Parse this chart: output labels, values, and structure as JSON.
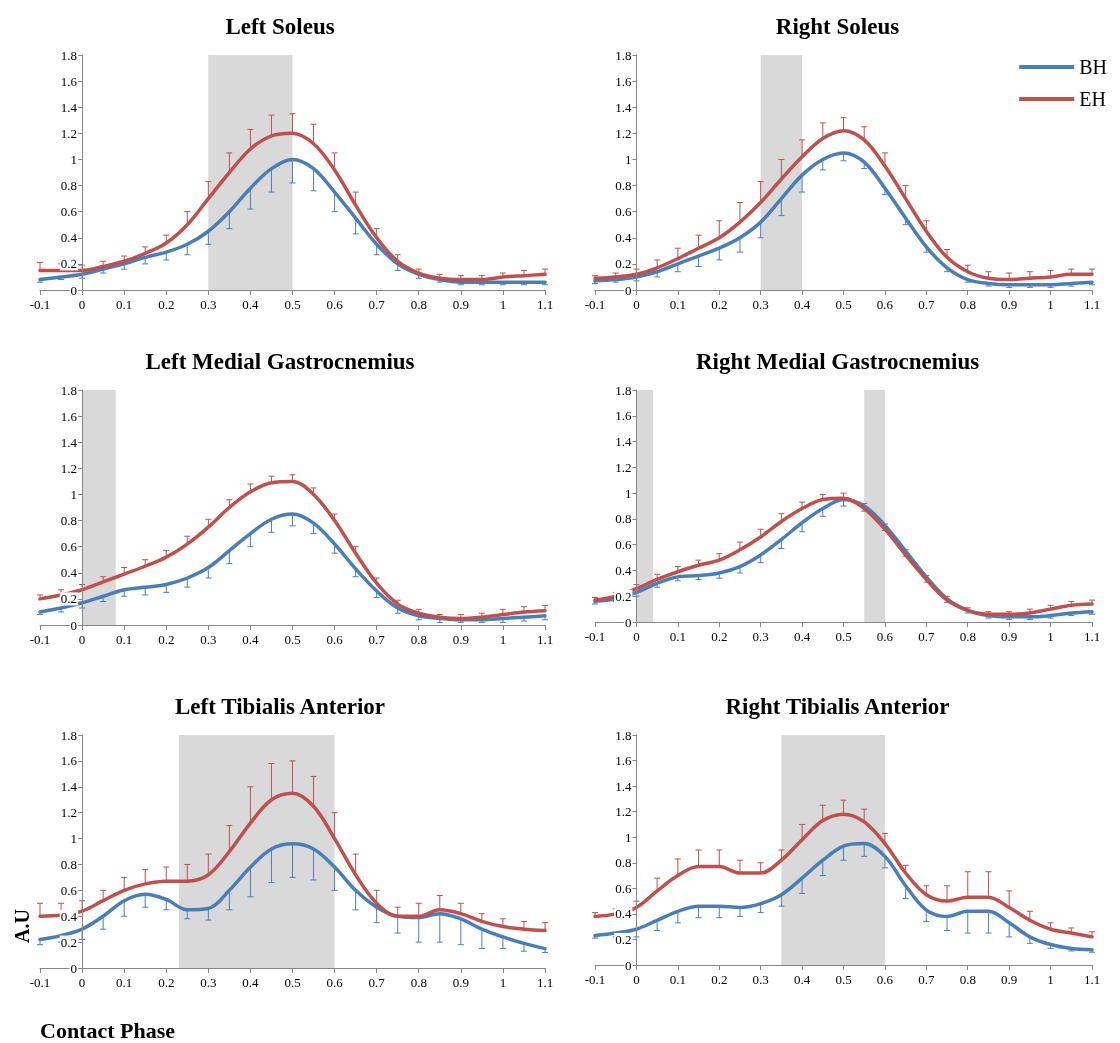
{
  "chart_data": [
    {
      "type": "line",
      "title": "Left Soleus",
      "x": [
        -0.1,
        -0.05,
        0,
        0.05,
        0.1,
        0.15,
        0.2,
        0.25,
        0.3,
        0.35,
        0.4,
        0.45,
        0.5,
        0.55,
        0.6,
        0.65,
        0.7,
        0.75,
        0.8,
        0.85,
        0.9,
        0.95,
        1.0,
        1.05,
        1.1
      ],
      "xlim": [
        -0.1,
        1.1
      ],
      "xticks": [
        -0.1,
        0,
        0.1,
        0.2,
        0.3,
        0.4,
        0.5,
        0.6,
        0.7,
        0.8,
        0.9,
        1,
        1.1
      ],
      "ylim": [
        0,
        1.8
      ],
      "yticks": [
        0,
        0.2,
        0.4,
        0.6,
        0.8,
        1,
        1.2,
        1.4,
        1.6,
        1.8
      ],
      "marker": "none",
      "line_style": "solid",
      "bands": [
        {
          "axis": "x",
          "from": 0.3,
          "to": 0.5,
          "color": "#d9d9d9"
        }
      ],
      "series": [
        {
          "color": "#4a7ebb",
          "values": [
            0.08,
            0.1,
            0.12,
            0.16,
            0.2,
            0.25,
            0.29,
            0.35,
            0.45,
            0.6,
            0.78,
            0.93,
            1.0,
            0.93,
            0.75,
            0.55,
            0.35,
            0.2,
            0.12,
            0.08,
            0.06,
            0.06,
            0.06,
            0.06,
            0.06
          ],
          "errors": [
            [
              0.06,
              0.08
            ],
            [
              0.08,
              0.1
            ],
            [
              0.09,
              0.12
            ],
            [
              0.13,
              0.16
            ],
            [
              0.16,
              0.2
            ],
            [
              0.2,
              0.25
            ],
            [
              0.23,
              0.29
            ],
            [
              0.27,
              0.35
            ],
            [
              0.35,
              0.45
            ],
            [
              0.47,
              0.6
            ],
            [
              0.62,
              0.78
            ],
            [
              0.75,
              0.93
            ],
            [
              0.82,
              1.0
            ],
            [
              0.76,
              0.93
            ],
            [
              0.6,
              0.75
            ],
            [
              0.43,
              0.55
            ],
            [
              0.27,
              0.35
            ],
            [
              0.15,
              0.2
            ],
            [
              0.09,
              0.12
            ],
            [
              0.06,
              0.08
            ],
            [
              0.04,
              0.06
            ],
            [
              0.04,
              0.06
            ],
            [
              0.04,
              0.06
            ],
            [
              0.04,
              0.06
            ],
            [
              0.04,
              0.06
            ]
          ]
        },
        {
          "color": "#c0504d",
          "values": [
            0.15,
            0.15,
            0.15,
            0.18,
            0.22,
            0.28,
            0.36,
            0.5,
            0.7,
            0.9,
            1.08,
            1.18,
            1.2,
            1.12,
            0.92,
            0.65,
            0.4,
            0.22,
            0.13,
            0.09,
            0.08,
            0.08,
            0.1,
            0.11,
            0.12
          ],
          "errors": [
            [
              0.15,
              0.21
            ],
            [
              0.15,
              0.2
            ],
            [
              0.15,
              0.19
            ],
            [
              0.18,
              0.22
            ],
            [
              0.22,
              0.26
            ],
            [
              0.28,
              0.33
            ],
            [
              0.36,
              0.42
            ],
            [
              0.5,
              0.6
            ],
            [
              0.7,
              0.83
            ],
            [
              0.9,
              1.05
            ],
            [
              1.08,
              1.23
            ],
            [
              1.18,
              1.34
            ],
            [
              1.2,
              1.35
            ],
            [
              1.12,
              1.27
            ],
            [
              0.92,
              1.05
            ],
            [
              0.65,
              0.75
            ],
            [
              0.4,
              0.47
            ],
            [
              0.22,
              0.27
            ],
            [
              0.13,
              0.16
            ],
            [
              0.09,
              0.12
            ],
            [
              0.08,
              0.11
            ],
            [
              0.08,
              0.11
            ],
            [
              0.1,
              0.13
            ],
            [
              0.11,
              0.15
            ],
            [
              0.12,
              0.16
            ]
          ]
        }
      ]
    },
    {
      "type": "line",
      "title": "Right Soleus",
      "x": [
        -0.1,
        -0.05,
        0,
        0.05,
        0.1,
        0.15,
        0.2,
        0.25,
        0.3,
        0.35,
        0.4,
        0.45,
        0.5,
        0.55,
        0.6,
        0.65,
        0.7,
        0.75,
        0.8,
        0.85,
        0.9,
        0.95,
        1.0,
        1.05,
        1.1
      ],
      "xlim": [
        -0.1,
        1.1
      ],
      "xticks": [
        -0.1,
        0,
        0.1,
        0.2,
        0.3,
        0.4,
        0.5,
        0.6,
        0.7,
        0.8,
        0.9,
        1,
        1.1
      ],
      "ylim": [
        0,
        1.8
      ],
      "yticks": [
        0,
        0.2,
        0.4,
        0.6,
        0.8,
        1,
        1.2,
        1.4,
        1.6,
        1.8
      ],
      "marker": "none",
      "line_style": "solid",
      "legend": "top right",
      "bands": [
        {
          "axis": "x",
          "from": 0.3,
          "to": 0.4,
          "color": "#d9d9d9"
        }
      ],
      "series": [
        {
          "name": "BH",
          "color": "#4a7ebb",
          "values": [
            0.07,
            0.08,
            0.1,
            0.14,
            0.2,
            0.26,
            0.32,
            0.4,
            0.52,
            0.7,
            0.88,
            1.0,
            1.05,
            0.98,
            0.78,
            0.55,
            0.33,
            0.17,
            0.08,
            0.05,
            0.04,
            0.04,
            0.04,
            0.05,
            0.06
          ],
          "errors": [
            [
              0.05,
              0.07
            ],
            [
              0.06,
              0.08
            ],
            [
              0.07,
              0.1
            ],
            [
              0.1,
              0.14
            ],
            [
              0.14,
              0.2
            ],
            [
              0.18,
              0.26
            ],
            [
              0.23,
              0.32
            ],
            [
              0.29,
              0.4
            ],
            [
              0.4,
              0.52
            ],
            [
              0.57,
              0.7
            ],
            [
              0.75,
              0.88
            ],
            [
              0.92,
              1.0
            ],
            [
              0.99,
              1.05
            ],
            [
              0.93,
              0.98
            ],
            [
              0.73,
              0.78
            ],
            [
              0.5,
              0.55
            ],
            [
              0.29,
              0.33
            ],
            [
              0.14,
              0.17
            ],
            [
              0.06,
              0.08
            ],
            [
              0.03,
              0.05
            ],
            [
              0.02,
              0.04
            ],
            [
              0.02,
              0.04
            ],
            [
              0.02,
              0.04
            ],
            [
              0.03,
              0.05
            ],
            [
              0.04,
              0.06
            ]
          ]
        },
        {
          "name": "EH",
          "color": "#c0504d",
          "values": [
            0.09,
            0.1,
            0.12,
            0.17,
            0.24,
            0.32,
            0.4,
            0.52,
            0.67,
            0.85,
            1.02,
            1.16,
            1.22,
            1.15,
            0.95,
            0.7,
            0.45,
            0.25,
            0.14,
            0.09,
            0.08,
            0.09,
            0.1,
            0.12,
            0.12
          ],
          "errors": [
            [
              0.09,
              0.11
            ],
            [
              0.1,
              0.13
            ],
            [
              0.12,
              0.16
            ],
            [
              0.17,
              0.23
            ],
            [
              0.24,
              0.32
            ],
            [
              0.32,
              0.42
            ],
            [
              0.4,
              0.53
            ],
            [
              0.52,
              0.67
            ],
            [
              0.67,
              0.83
            ],
            [
              0.85,
              1.0
            ],
            [
              1.02,
              1.15
            ],
            [
              1.16,
              1.28
            ],
            [
              1.22,
              1.32
            ],
            [
              1.15,
              1.25
            ],
            [
              0.95,
              1.05
            ],
            [
              0.7,
              0.8
            ],
            [
              0.45,
              0.53
            ],
            [
              0.25,
              0.31
            ],
            [
              0.14,
              0.19
            ],
            [
              0.09,
              0.14
            ],
            [
              0.08,
              0.13
            ],
            [
              0.09,
              0.14
            ],
            [
              0.1,
              0.15
            ],
            [
              0.12,
              0.16
            ],
            [
              0.12,
              0.16
            ]
          ]
        }
      ]
    },
    {
      "type": "line",
      "title": "Left Medial Gastrocnemius",
      "x": [
        -0.1,
        -0.05,
        0,
        0.05,
        0.1,
        0.15,
        0.2,
        0.25,
        0.3,
        0.35,
        0.4,
        0.45,
        0.5,
        0.55,
        0.6,
        0.65,
        0.7,
        0.75,
        0.8,
        0.85,
        0.9,
        0.95,
        1.0,
        1.05,
        1.1
      ],
      "xlim": [
        -0.1,
        1.1
      ],
      "xticks": [
        -0.1,
        0,
        0.1,
        0.2,
        0.3,
        0.4,
        0.5,
        0.6,
        0.7,
        0.8,
        0.9,
        1,
        1.1
      ],
      "ylim": [
        0,
        1.8
      ],
      "yticks": [
        0,
        0.2,
        0.4,
        0.6,
        0.8,
        1,
        1.2,
        1.4,
        1.6,
        1.8
      ],
      "marker": "none",
      "line_style": "solid",
      "bands": [
        {
          "axis": "x",
          "from": 0,
          "to": 0.08,
          "color": "#d9d9d9"
        }
      ],
      "series": [
        {
          "color": "#4a7ebb",
          "values": [
            0.1,
            0.13,
            0.17,
            0.22,
            0.27,
            0.29,
            0.31,
            0.36,
            0.44,
            0.57,
            0.7,
            0.81,
            0.85,
            0.78,
            0.62,
            0.43,
            0.26,
            0.13,
            0.07,
            0.05,
            0.04,
            0.04,
            0.05,
            0.06,
            0.07
          ],
          "errors": [
            [
              0.08,
              0.1
            ],
            [
              0.1,
              0.13
            ],
            [
              0.13,
              0.17
            ],
            [
              0.18,
              0.22
            ],
            [
              0.22,
              0.27
            ],
            [
              0.23,
              0.29
            ],
            [
              0.25,
              0.31
            ],
            [
              0.29,
              0.36
            ],
            [
              0.36,
              0.44
            ],
            [
              0.47,
              0.57
            ],
            [
              0.6,
              0.7
            ],
            [
              0.71,
              0.81
            ],
            [
              0.76,
              0.85
            ],
            [
              0.7,
              0.78
            ],
            [
              0.55,
              0.62
            ],
            [
              0.37,
              0.43
            ],
            [
              0.21,
              0.26
            ],
            [
              0.09,
              0.13
            ],
            [
              0.04,
              0.07
            ],
            [
              0.02,
              0.05
            ],
            [
              0.02,
              0.04
            ],
            [
              0.02,
              0.04
            ],
            [
              0.02,
              0.05
            ],
            [
              0.03,
              0.06
            ],
            [
              0.04,
              0.07
            ]
          ]
        },
        {
          "color": "#c0504d",
          "values": [
            0.2,
            0.23,
            0.27,
            0.33,
            0.39,
            0.45,
            0.52,
            0.62,
            0.75,
            0.9,
            1.02,
            1.09,
            1.1,
            1.0,
            0.8,
            0.55,
            0.32,
            0.16,
            0.09,
            0.06,
            0.05,
            0.06,
            0.08,
            0.1,
            0.11
          ],
          "errors": [
            [
              0.2,
              0.23
            ],
            [
              0.23,
              0.27
            ],
            [
              0.27,
              0.31
            ],
            [
              0.33,
              0.37
            ],
            [
              0.39,
              0.44
            ],
            [
              0.45,
              0.5
            ],
            [
              0.52,
              0.57
            ],
            [
              0.62,
              0.68
            ],
            [
              0.75,
              0.81
            ],
            [
              0.9,
              0.96
            ],
            [
              1.02,
              1.08
            ],
            [
              1.09,
              1.14
            ],
            [
              1.1,
              1.15
            ],
            [
              1.0,
              1.05
            ],
            [
              0.8,
              0.85
            ],
            [
              0.55,
              0.6
            ],
            [
              0.32,
              0.36
            ],
            [
              0.16,
              0.19
            ],
            [
              0.09,
              0.12
            ],
            [
              0.06,
              0.08
            ],
            [
              0.05,
              0.08
            ],
            [
              0.06,
              0.09
            ],
            [
              0.08,
              0.12
            ],
            [
              0.1,
              0.14
            ],
            [
              0.11,
              0.15
            ]
          ]
        }
      ]
    },
    {
      "type": "line",
      "title": "Right Medial Gastrocnemius",
      "x": [
        -0.1,
        -0.05,
        0,
        0.05,
        0.1,
        0.15,
        0.2,
        0.25,
        0.3,
        0.35,
        0.4,
        0.45,
        0.5,
        0.55,
        0.6,
        0.65,
        0.7,
        0.75,
        0.8,
        0.85,
        0.9,
        0.95,
        1.0,
        1.05,
        1.1
      ],
      "xlim": [
        -0.1,
        1.1
      ],
      "xticks": [
        -0.1,
        0,
        0.1,
        0.2,
        0.3,
        0.4,
        0.5,
        0.6,
        0.7,
        0.8,
        0.9,
        1,
        1.1
      ],
      "ylim": [
        0,
        1.8
      ],
      "yticks": [
        0,
        0.2,
        0.4,
        0.6,
        0.8,
        1,
        1.2,
        1.4,
        1.6,
        1.8
      ],
      "marker": "none",
      "line_style": "solid",
      "bands": [
        {
          "axis": "x",
          "from": 0,
          "to": 0.04,
          "color": "#d9d9d9"
        },
        {
          "axis": "x",
          "from": 0.55,
          "to": 0.6,
          "color": "#d9d9d9"
        }
      ],
      "series": [
        {
          "color": "#4a7ebb",
          "values": [
            0.16,
            0.18,
            0.23,
            0.3,
            0.35,
            0.36,
            0.38,
            0.43,
            0.52,
            0.64,
            0.77,
            0.88,
            0.95,
            0.9,
            0.75,
            0.55,
            0.35,
            0.18,
            0.09,
            0.05,
            0.04,
            0.04,
            0.05,
            0.07,
            0.08
          ],
          "errors": [
            [
              0.14,
              0.16
            ],
            [
              0.16,
              0.18
            ],
            [
              0.2,
              0.23
            ],
            [
              0.27,
              0.3
            ],
            [
              0.32,
              0.35
            ],
            [
              0.33,
              0.36
            ],
            [
              0.34,
              0.38
            ],
            [
              0.38,
              0.43
            ],
            [
              0.46,
              0.52
            ],
            [
              0.57,
              0.64
            ],
            [
              0.7,
              0.77
            ],
            [
              0.82,
              0.88
            ],
            [
              0.9,
              0.95
            ],
            [
              0.86,
              0.9
            ],
            [
              0.71,
              0.75
            ],
            [
              0.51,
              0.55
            ],
            [
              0.31,
              0.35
            ],
            [
              0.15,
              0.18
            ],
            [
              0.07,
              0.09
            ],
            [
              0.03,
              0.05
            ],
            [
              0.02,
              0.04
            ],
            [
              0.02,
              0.04
            ],
            [
              0.03,
              0.05
            ],
            [
              0.05,
              0.07
            ],
            [
              0.06,
              0.08
            ]
          ]
        },
        {
          "color": "#c0504d",
          "values": [
            0.17,
            0.2,
            0.26,
            0.33,
            0.39,
            0.44,
            0.48,
            0.56,
            0.66,
            0.78,
            0.88,
            0.95,
            0.96,
            0.88,
            0.72,
            0.52,
            0.33,
            0.17,
            0.09,
            0.06,
            0.06,
            0.07,
            0.1,
            0.13,
            0.14
          ],
          "errors": [
            [
              0.17,
              0.19
            ],
            [
              0.2,
              0.23
            ],
            [
              0.26,
              0.29
            ],
            [
              0.33,
              0.37
            ],
            [
              0.39,
              0.43
            ],
            [
              0.44,
              0.48
            ],
            [
              0.48,
              0.53
            ],
            [
              0.56,
              0.62
            ],
            [
              0.66,
              0.72
            ],
            [
              0.78,
              0.84
            ],
            [
              0.88,
              0.93
            ],
            [
              0.95,
              0.99
            ],
            [
              0.96,
              1.0
            ],
            [
              0.88,
              0.92
            ],
            [
              0.72,
              0.76
            ],
            [
              0.52,
              0.56
            ],
            [
              0.33,
              0.36
            ],
            [
              0.17,
              0.2
            ],
            [
              0.09,
              0.11
            ],
            [
              0.06,
              0.08
            ],
            [
              0.06,
              0.08
            ],
            [
              0.07,
              0.1
            ],
            [
              0.1,
              0.13
            ],
            [
              0.13,
              0.16
            ],
            [
              0.14,
              0.17
            ]
          ]
        }
      ]
    },
    {
      "type": "line",
      "title": "Left Tibialis Anterior",
      "xlabel": "Contact Phase",
      "ylabel": "A.U",
      "x": [
        -0.1,
        -0.05,
        0,
        0.05,
        0.1,
        0.15,
        0.2,
        0.25,
        0.3,
        0.35,
        0.4,
        0.45,
        0.5,
        0.55,
        0.6,
        0.65,
        0.7,
        0.75,
        0.8,
        0.85,
        0.9,
        0.95,
        1.0,
        1.05,
        1.1
      ],
      "xlim": [
        -0.1,
        1.1
      ],
      "xticks": [
        -0.1,
        0,
        0.1,
        0.2,
        0.3,
        0.4,
        0.5,
        0.6,
        0.7,
        0.8,
        0.9,
        1,
        1.1
      ],
      "ylim": [
        0,
        1.8
      ],
      "yticks": [
        0,
        0.2,
        0.4,
        0.6,
        0.8,
        1,
        1.2,
        1.4,
        1.6,
        1.8
      ],
      "marker": "none",
      "line_style": "solid",
      "bands": [
        {
          "axis": "x",
          "from": 0.23,
          "to": 0.6,
          "color": "#d9d9d9"
        }
      ],
      "series": [
        {
          "color": "#4a7ebb",
          "values": [
            0.22,
            0.25,
            0.3,
            0.4,
            0.52,
            0.57,
            0.53,
            0.45,
            0.46,
            0.6,
            0.78,
            0.92,
            0.96,
            0.92,
            0.78,
            0.6,
            0.47,
            0.4,
            0.39,
            0.42,
            0.38,
            0.3,
            0.24,
            0.19,
            0.15
          ],
          "errors": [
            [
              0.18,
              0.22
            ],
            [
              0.2,
              0.25
            ],
            [
              0.22,
              0.3
            ],
            [
              0.3,
              0.4
            ],
            [
              0.4,
              0.52
            ],
            [
              0.47,
              0.57
            ],
            [
              0.45,
              0.53
            ],
            [
              0.38,
              0.45
            ],
            [
              0.37,
              0.46
            ],
            [
              0.45,
              0.6
            ],
            [
              0.55,
              0.78
            ],
            [
              0.66,
              0.92
            ],
            [
              0.7,
              0.96
            ],
            [
              0.68,
              0.92
            ],
            [
              0.6,
              0.78
            ],
            [
              0.45,
              0.6
            ],
            [
              0.35,
              0.47
            ],
            [
              0.27,
              0.4
            ],
            [
              0.2,
              0.39
            ],
            [
              0.2,
              0.42
            ],
            [
              0.18,
              0.38
            ],
            [
              0.15,
              0.3
            ],
            [
              0.15,
              0.24
            ],
            [
              0.13,
              0.19
            ],
            [
              0.12,
              0.15
            ]
          ]
        },
        {
          "color": "#c0504d",
          "values": [
            0.4,
            0.41,
            0.44,
            0.52,
            0.6,
            0.65,
            0.67,
            0.67,
            0.72,
            0.9,
            1.12,
            1.3,
            1.35,
            1.25,
            1.0,
            0.72,
            0.5,
            0.4,
            0.4,
            0.45,
            0.42,
            0.36,
            0.32,
            0.3,
            0.29
          ],
          "errors": [
            [
              0.4,
              0.5
            ],
            [
              0.41,
              0.5
            ],
            [
              0.44,
              0.52
            ],
            [
              0.52,
              0.6
            ],
            [
              0.6,
              0.7
            ],
            [
              0.65,
              0.76
            ],
            [
              0.67,
              0.78
            ],
            [
              0.67,
              0.8
            ],
            [
              0.72,
              0.88
            ],
            [
              0.9,
              1.1
            ],
            [
              1.12,
              1.4
            ],
            [
              1.3,
              1.58
            ],
            [
              1.35,
              1.6
            ],
            [
              1.25,
              1.48
            ],
            [
              1.0,
              1.2
            ],
            [
              0.72,
              0.88
            ],
            [
              0.5,
              0.6
            ],
            [
              0.4,
              0.47
            ],
            [
              0.4,
              0.5
            ],
            [
              0.45,
              0.56
            ],
            [
              0.42,
              0.5
            ],
            [
              0.36,
              0.42
            ],
            [
              0.32,
              0.38
            ],
            [
              0.3,
              0.36
            ],
            [
              0.29,
              0.35
            ]
          ]
        }
      ]
    },
    {
      "type": "line",
      "title": "Right Tibialis Anterior",
      "x": [
        -0.1,
        -0.05,
        0,
        0.05,
        0.1,
        0.15,
        0.2,
        0.25,
        0.3,
        0.35,
        0.4,
        0.45,
        0.5,
        0.55,
        0.6,
        0.65,
        0.7,
        0.75,
        0.8,
        0.85,
        0.9,
        0.95,
        1.0,
        1.05,
        1.1
      ],
      "xlim": [
        -0.1,
        1.1
      ],
      "xticks": [
        -0.1,
        0,
        0.1,
        0.2,
        0.3,
        0.4,
        0.5,
        0.6,
        0.7,
        0.8,
        0.9,
        1,
        1.1
      ],
      "ylim": [
        0,
        1.8
      ],
      "yticks": [
        0,
        0.2,
        0.4,
        0.6,
        0.8,
        1,
        1.2,
        1.4,
        1.6,
        1.8
      ],
      "marker": "none",
      "line_style": "solid",
      "bands": [
        {
          "axis": "x",
          "from": 0.35,
          "to": 0.6,
          "color": "#d9d9d9"
        }
      ],
      "series": [
        {
          "color": "#4a7ebb",
          "values": [
            0.23,
            0.25,
            0.28,
            0.35,
            0.42,
            0.46,
            0.46,
            0.45,
            0.48,
            0.55,
            0.68,
            0.82,
            0.93,
            0.95,
            0.85,
            0.62,
            0.43,
            0.38,
            0.42,
            0.42,
            0.33,
            0.22,
            0.16,
            0.13,
            0.12
          ],
          "errors": [
            [
              0.21,
              0.23
            ],
            [
              0.22,
              0.25
            ],
            [
              0.22,
              0.28
            ],
            [
              0.27,
              0.35
            ],
            [
              0.33,
              0.42
            ],
            [
              0.37,
              0.46
            ],
            [
              0.37,
              0.46
            ],
            [
              0.38,
              0.45
            ],
            [
              0.41,
              0.48
            ],
            [
              0.46,
              0.55
            ],
            [
              0.56,
              0.68
            ],
            [
              0.7,
              0.82
            ],
            [
              0.82,
              0.93
            ],
            [
              0.85,
              0.95
            ],
            [
              0.76,
              0.85
            ],
            [
              0.52,
              0.62
            ],
            [
              0.34,
              0.43
            ],
            [
              0.27,
              0.38
            ],
            [
              0.25,
              0.42
            ],
            [
              0.25,
              0.42
            ],
            [
              0.22,
              0.33
            ],
            [
              0.17,
              0.22
            ],
            [
              0.13,
              0.16
            ],
            [
              0.11,
              0.13
            ],
            [
              0.1,
              0.12
            ]
          ]
        },
        {
          "color": "#c0504d",
          "values": [
            0.38,
            0.4,
            0.45,
            0.58,
            0.7,
            0.77,
            0.77,
            0.72,
            0.72,
            0.82,
            0.98,
            1.13,
            1.18,
            1.12,
            0.95,
            0.72,
            0.55,
            0.5,
            0.53,
            0.53,
            0.45,
            0.35,
            0.28,
            0.25,
            0.22
          ],
          "errors": [
            [
              0.38,
              0.41
            ],
            [
              0.4,
              0.44
            ],
            [
              0.45,
              0.5
            ],
            [
              0.58,
              0.68
            ],
            [
              0.7,
              0.83
            ],
            [
              0.77,
              0.9
            ],
            [
              0.77,
              0.9
            ],
            [
              0.72,
              0.82
            ],
            [
              0.72,
              0.8
            ],
            [
              0.82,
              0.9
            ],
            [
              0.98,
              1.1
            ],
            [
              1.13,
              1.25
            ],
            [
              1.18,
              1.29
            ],
            [
              1.12,
              1.22
            ],
            [
              0.95,
              1.03
            ],
            [
              0.72,
              0.78
            ],
            [
              0.55,
              0.62
            ],
            [
              0.5,
              0.62
            ],
            [
              0.53,
              0.73
            ],
            [
              0.53,
              0.73
            ],
            [
              0.45,
              0.58
            ],
            [
              0.35,
              0.42
            ],
            [
              0.28,
              0.33
            ],
            [
              0.25,
              0.29
            ],
            [
              0.22,
              0.26
            ]
          ]
        }
      ]
    }
  ]
}
